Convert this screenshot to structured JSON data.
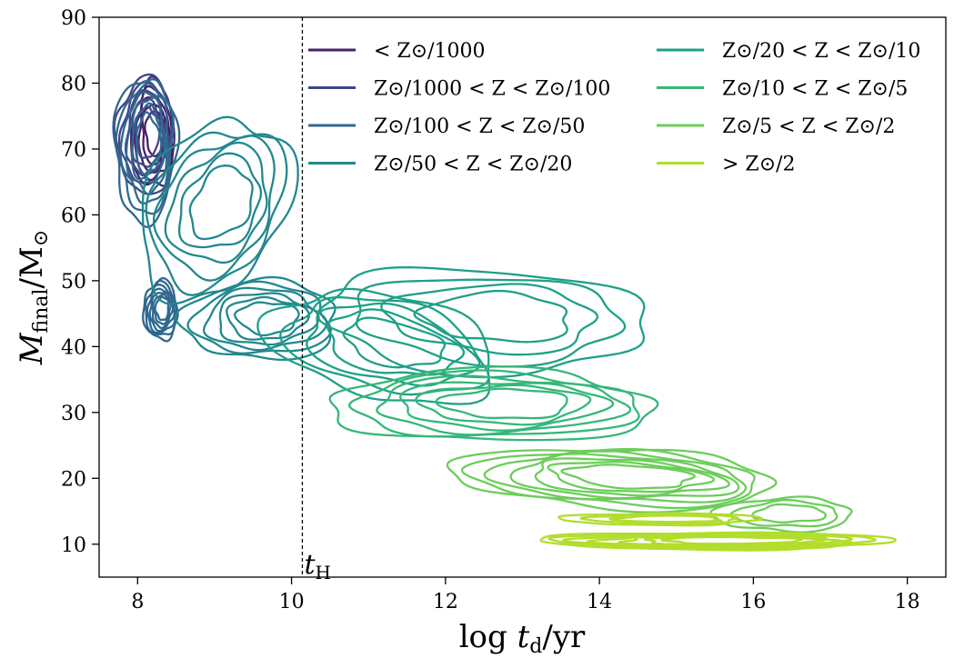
{
  "chart_data": {
    "type": "contour",
    "xlabel": "log t_d/yr",
    "ylabel": "M_final/M_⊙",
    "xlim": [
      7.5,
      18.5
    ],
    "ylim": [
      5,
      90
    ],
    "xticks": [
      "8",
      "10",
      "12",
      "14",
      "16",
      "18"
    ],
    "yticks": [
      "10",
      "20",
      "30",
      "40",
      "50",
      "60",
      "70",
      "80",
      "90"
    ],
    "grid": false,
    "legend_position": "top-right",
    "legend_columns": 2,
    "reference_line": {
      "x": 10.14,
      "label": "t_H",
      "style": "dashed"
    },
    "series": [
      {
        "name": "< Z⊙/1000",
        "color": "#46216a",
        "blobs": [
          {
            "cx": 8.2,
            "cy": 72,
            "sx": 0.28,
            "sy": 8,
            "tilt": 0.0,
            "levels": 5
          }
        ]
      },
      {
        "name": "Z⊙/1000 < Z < Z⊙/100",
        "color": "#41468b",
        "blobs": [
          {
            "cx": 8.1,
            "cy": 72,
            "sx": 0.36,
            "sy": 9,
            "tilt": 0.0,
            "levels": 5
          }
        ]
      },
      {
        "name": "Z⊙/100 < Z < Z⊙/50",
        "color": "#30688e",
        "blobs": [
          {
            "cx": 8.1,
            "cy": 70,
            "sx": 0.4,
            "sy": 11,
            "tilt": 0.0,
            "levels": 6
          },
          {
            "cx": 8.3,
            "cy": 45.5,
            "sx": 0.22,
            "sy": 4.5,
            "tilt": 0.0,
            "levels": 7
          }
        ]
      },
      {
        "name": "Z⊙/50 < Z < Z⊙/20",
        "color": "#22888e",
        "blobs": [
          {
            "cx": 9.0,
            "cy": 61,
            "sx": 1.0,
            "sy": 13,
            "tilt": 0.3,
            "levels": 6
          },
          {
            "cx": 9.6,
            "cy": 44,
            "sx": 1.0,
            "sy": 6,
            "tilt": 0.0,
            "levels": 6
          }
        ]
      },
      {
        "name": "Z⊙/20 < Z < Z⊙/10",
        "color": "#1fa088",
        "blobs": [
          {
            "cx": 12.5,
            "cy": 44,
            "sx": 2.1,
            "sy": 8,
            "tilt": -0.12,
            "levels": 4
          },
          {
            "cx": 11.2,
            "cy": 40,
            "sx": 1.5,
            "sy": 8,
            "tilt": -0.35,
            "levels": 5
          }
        ]
      },
      {
        "name": "Z⊙/10 < Z < Z⊙/5",
        "color": "#35b779",
        "blobs": [
          {
            "cx": 12.6,
            "cy": 31,
            "sx": 2.1,
            "sy": 5.5,
            "tilt": -0.04,
            "levels": 6
          }
        ]
      },
      {
        "name": "Z⊙/5 < Z < Z⊙/2",
        "color": "#6ccd5a",
        "blobs": [
          {
            "cx": 14.2,
            "cy": 20,
            "sx": 2.1,
            "sy": 4.5,
            "tilt": -0.25,
            "levels": 7
          },
          {
            "cx": 16.4,
            "cy": 14.5,
            "sx": 0.9,
            "sy": 2.5,
            "tilt": 0.0,
            "levels": 3
          }
        ]
      },
      {
        "name": "> Z⊙/2",
        "color": "#b2dd2d",
        "blobs": [
          {
            "cx": 15.5,
            "cy": 10.5,
            "sx": 2.3,
            "sy": 1.3,
            "tilt": 0.0,
            "levels": 7
          },
          {
            "cx": 14.8,
            "cy": 13.8,
            "sx": 1.3,
            "sy": 0.9,
            "tilt": 0.0,
            "levels": 3
          }
        ]
      }
    ]
  }
}
